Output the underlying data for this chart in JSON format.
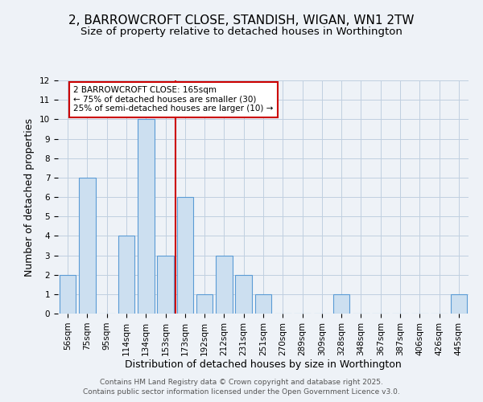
{
  "title": "2, BARROWCROFT CLOSE, STANDISH, WIGAN, WN1 2TW",
  "subtitle": "Size of property relative to detached houses in Worthington",
  "xlabel": "Distribution of detached houses by size in Worthington",
  "ylabel": "Number of detached properties",
  "bins": [
    "56sqm",
    "75sqm",
    "95sqm",
    "114sqm",
    "134sqm",
    "153sqm",
    "173sqm",
    "192sqm",
    "212sqm",
    "231sqm",
    "251sqm",
    "270sqm",
    "289sqm",
    "309sqm",
    "328sqm",
    "348sqm",
    "367sqm",
    "387sqm",
    "406sqm",
    "426sqm",
    "445sqm"
  ],
  "values": [
    2,
    7,
    0,
    4,
    10,
    3,
    6,
    1,
    3,
    2,
    1,
    0,
    0,
    0,
    1,
    0,
    0,
    0,
    0,
    0,
    1
  ],
  "bar_color": "#ccdff0",
  "bar_edge_color": "#5b9bd5",
  "vline_color": "#cc0000",
  "ylim": [
    0,
    12
  ],
  "yticks": [
    0,
    1,
    2,
    3,
    4,
    5,
    6,
    7,
    8,
    9,
    10,
    11,
    12
  ],
  "annotation_title": "2 BARROWCROFT CLOSE: 165sqm",
  "annotation_line1": "← 75% of detached houses are smaller (30)",
  "annotation_line2": "25% of semi-detached houses are larger (10) →",
  "annotation_box_color": "#ffffff",
  "annotation_box_edge_color": "#cc0000",
  "background_color": "#eef2f7",
  "grid_color": "#c0cfe0",
  "footer1": "Contains HM Land Registry data © Crown copyright and database right 2025.",
  "footer2": "Contains public sector information licensed under the Open Government Licence v3.0.",
  "title_fontsize": 11,
  "subtitle_fontsize": 9.5,
  "axis_label_fontsize": 9,
  "tick_fontsize": 7.5,
  "footer_fontsize": 6.5
}
